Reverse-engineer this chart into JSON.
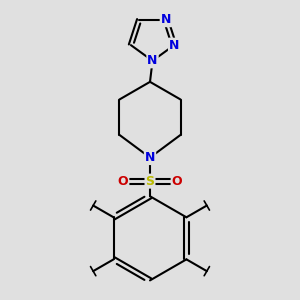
{
  "background_color": "#e0e0e0",
  "bond_color": "#000000",
  "triazole_N_color": "#0000dd",
  "sulfonyl_S_color": "#bbbb00",
  "sulfonyl_O_color": "#cc0000",
  "pip_N_color": "#0000dd",
  "line_width": 1.5,
  "figsize": [
    3.0,
    3.0
  ],
  "dpi": 100,
  "xlim": [
    -6.5,
    6.5
  ],
  "ylim": [
    -12.0,
    5.5
  ]
}
